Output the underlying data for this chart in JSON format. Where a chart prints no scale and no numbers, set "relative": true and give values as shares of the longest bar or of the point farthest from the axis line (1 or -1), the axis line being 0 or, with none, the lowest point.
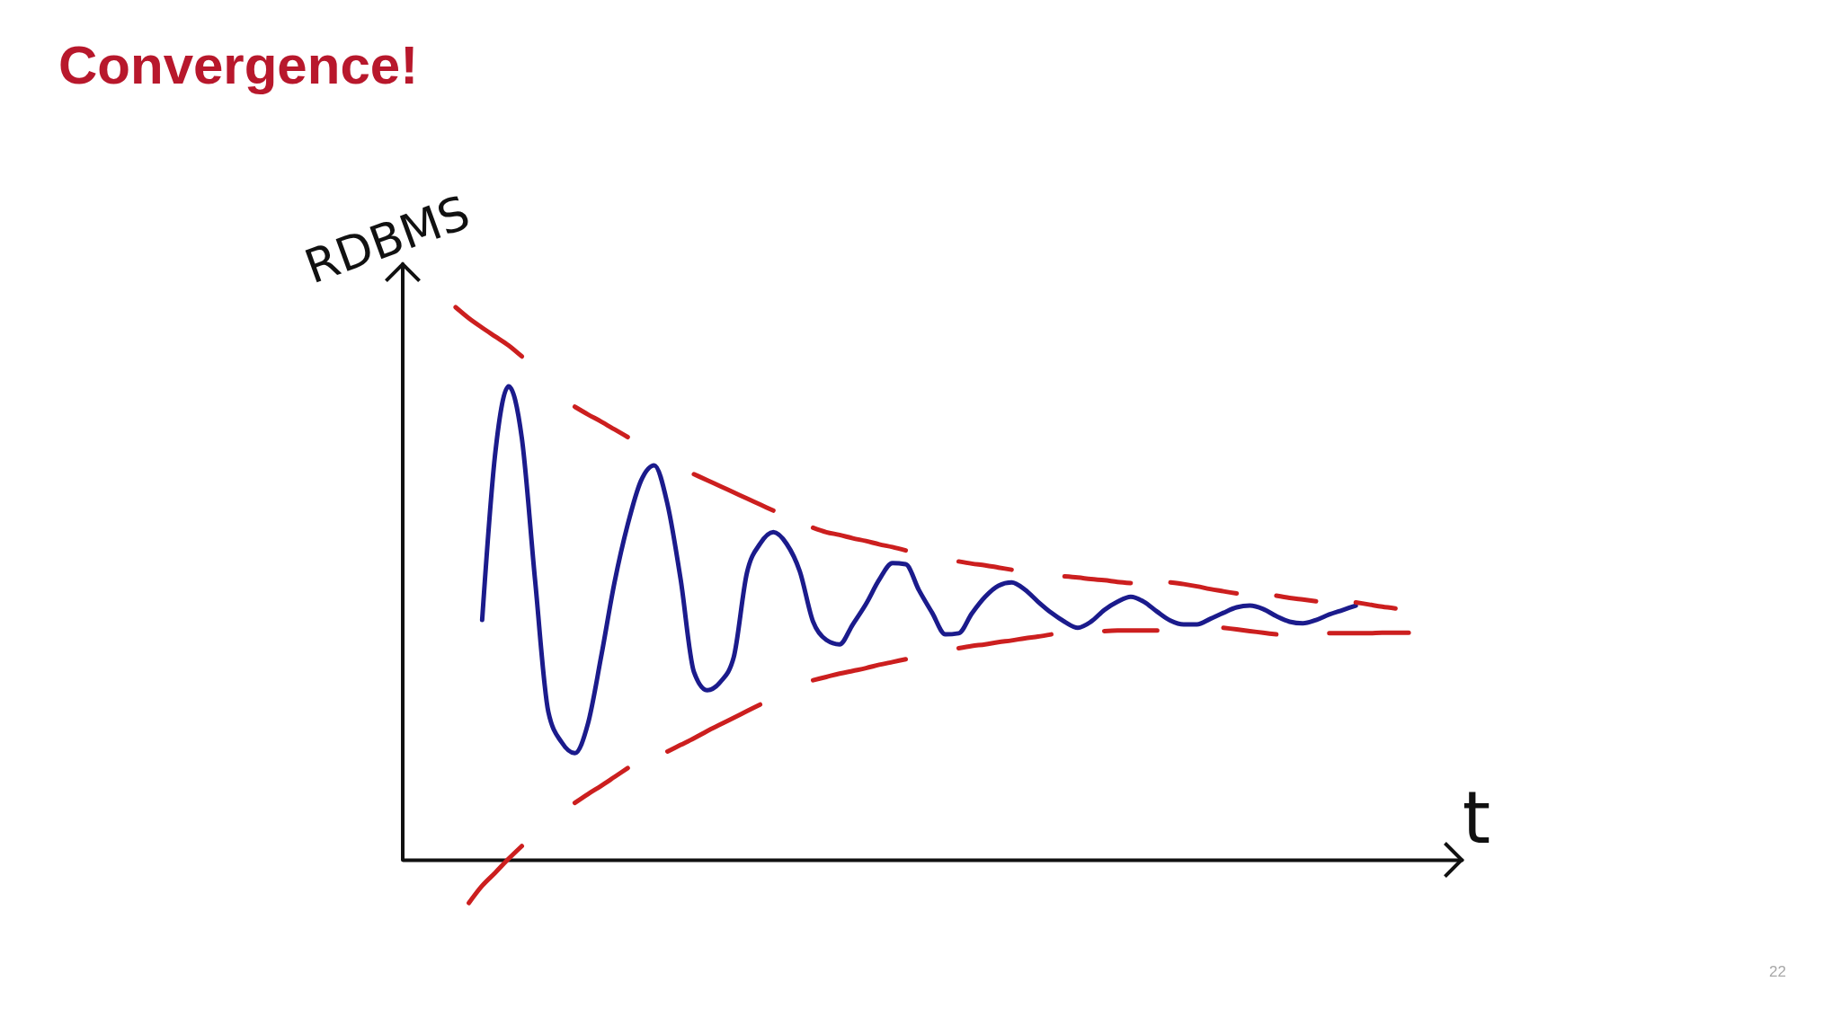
{
  "chart_data": {
    "type": "line",
    "title": "Convergence!",
    "xlabel": "t",
    "ylabel": "RDBMS",
    "annotations": [
      "22"
    ],
    "relative": true,
    "categories": [
      null,
      null,
      null,
      null,
      null,
      null,
      null,
      null,
      null,
      null,
      null,
      null,
      null,
      null,
      null,
      null,
      null,
      null,
      null,
      null,
      null,
      null,
      null,
      null,
      null,
      null,
      null,
      null,
      null,
      null,
      null,
      null,
      null,
      null,
      null,
      null,
      null,
      null,
      null,
      null,
      null,
      null,
      null,
      null,
      null,
      null,
      null,
      null,
      null,
      null,
      null,
      null,
      null,
      null,
      null,
      null,
      null,
      null,
      null,
      null,
      null,
      null,
      null,
      null,
      null,
      null,
      null,
      null,
      null,
      null,
      null,
      null,
      null,
      null,
      null,
      null,
      null,
      null,
      null,
      null,
      null
    ],
    "series": [
      {
        "color": "#1b1b8c",
        "values": [
          null,
          null,
          null,
          null,
          null,
          null,
          0.434,
          0.738,
          0.857,
          0.763,
          0.506,
          0.268,
          0.213,
          0.193,
          0.247,
          0.369,
          0.502,
          0.607,
          0.686,
          0.714,
          0.644,
          0.507,
          0.34,
          0.307,
          0.322,
          0.366,
          0.519,
          0.572,
          0.593,
          0.572,
          0.522,
          0.431,
          0.398,
          0.39,
          0.426,
          0.463,
          0.507,
          0.537,
          0.535,
          0.488,
          0.447,
          0.408,
          0.41,
          0.446,
          0.476,
          0.496,
          0.502,
          0.489,
          0.467,
          0.447,
          0.431,
          0.42,
          0.431,
          0.452,
          0.467,
          0.476,
          0.467,
          0.449,
          0.433,
          0.426,
          0.426,
          0.436,
          0.447,
          0.457,
          0.46,
          0.454,
          0.441,
          0.431,
          0.428,
          0.434,
          0.444,
          0.452,
          0.46,
          null,
          null,
          null,
          null,
          null,
          null,
          null,
          null
        ]
      },
      {
        "color": "#cc1f1f",
        "values": [
          null,
          null,
          null,
          null,
          1.0,
          0.98,
          0.963,
          0.947,
          0.931,
          0.911,
          null,
          null,
          null,
          0.82,
          0.806,
          0.793,
          0.779,
          0.765,
          null,
          null,
          null,
          null,
          0.698,
          0.687,
          0.676,
          0.665,
          0.654,
          0.643,
          0.632,
          null,
          null,
          0.601,
          0.593,
          0.588,
          0.582,
          0.577,
          0.571,
          0.566,
          0.56,
          null,
          null,
          null,
          0.54,
          0.536,
          0.533,
          0.529,
          0.525,
          null,
          null,
          null,
          0.513,
          0.511,
          0.508,
          0.506,
          0.503,
          0.501,
          null,
          null,
          0.502,
          0.499,
          0.495,
          0.49,
          0.486,
          0.482,
          null,
          null,
          0.478,
          0.474,
          0.471,
          0.468,
          null,
          null,
          0.466,
          0.462,
          0.458,
          0.455,
          null,
          null,
          null,
          null,
          null
        ]
      },
      {
        "color": "#cc1f1f",
        "values": [
          null,
          null,
          null,
          null,
          null,
          -0.078,
          -0.047,
          -0.023,
          0.002,
          0.025,
          null,
          null,
          null,
          0.103,
          0.119,
          0.134,
          0.15,
          0.166,
          null,
          null,
          0.196,
          0.208,
          0.22,
          0.233,
          0.245,
          0.257,
          0.269,
          0.281,
          null,
          null,
          null,
          0.325,
          0.331,
          0.337,
          0.342,
          0.347,
          0.353,
          0.358,
          0.363,
          null,
          null,
          null,
          0.383,
          0.387,
          0.39,
          0.394,
          0.397,
          0.401,
          0.404,
          0.408,
          null,
          null,
          null,
          0.414,
          0.415,
          0.415,
          0.415,
          0.415,
          null,
          null,
          null,
          null,
          0.42,
          0.417,
          0.414,
          0.411,
          0.408,
          null,
          null,
          null,
          0.41,
          0.41,
          0.41,
          0.41,
          0.411,
          0.411,
          0.411,
          null,
          null,
          null,
          null
        ]
      }
    ]
  }
}
